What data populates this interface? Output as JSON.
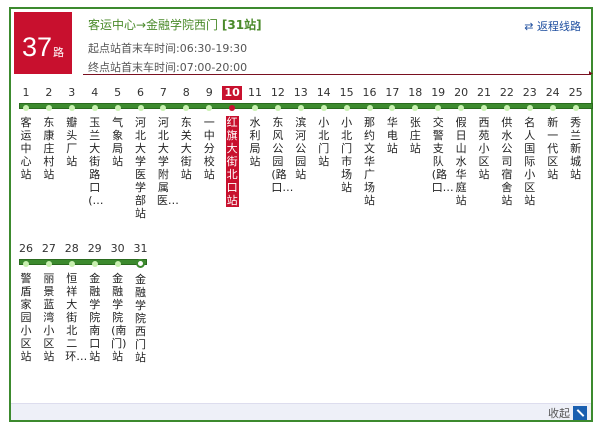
{
  "route": {
    "number": "37",
    "suffix": "路",
    "title": "客运中心→金融学院西门",
    "count": "[31站]",
    "first_last_start": "起点站首末车时间:06:30-19:30",
    "first_last_end": "终点站首末车时间:07:00-20:00",
    "reverse_label": "返程线路",
    "reverse_icon": "swap-arrows-icon"
  },
  "current_stop": 10,
  "stops": [
    "客运中心站",
    "东康庄村站",
    "瓣头厂站",
    "玉兰大街路口(…",
    "气象局站",
    "河北大学医学部站",
    "河北大学附属医…",
    "东关大街站",
    "一中分校站",
    "红旗大街北口站",
    "水利局站",
    "东风公园(路口…",
    "滨河公园站",
    "小北门站",
    "小北门市场站",
    "那约文华广场站",
    "华电站",
    "张庄站",
    "交警支队(路口…",
    "假日山水华庭站",
    "西苑小区站",
    "供水公司宿舍站",
    "名人国际小区站",
    "新一代区站",
    "秀兰新城站",
    "警盾家园小区站",
    "丽景蓝湾小区站",
    "恒祥大街北二环…",
    "金融学院南口站",
    "金融学院(南门)站",
    "金融学院西门站"
  ],
  "footer": {
    "collapse_label": "收起",
    "collapse_icon": "collapse-arrow-icon"
  },
  "colors": {
    "accent": "#c8102e",
    "line": "#3c8a2e"
  }
}
